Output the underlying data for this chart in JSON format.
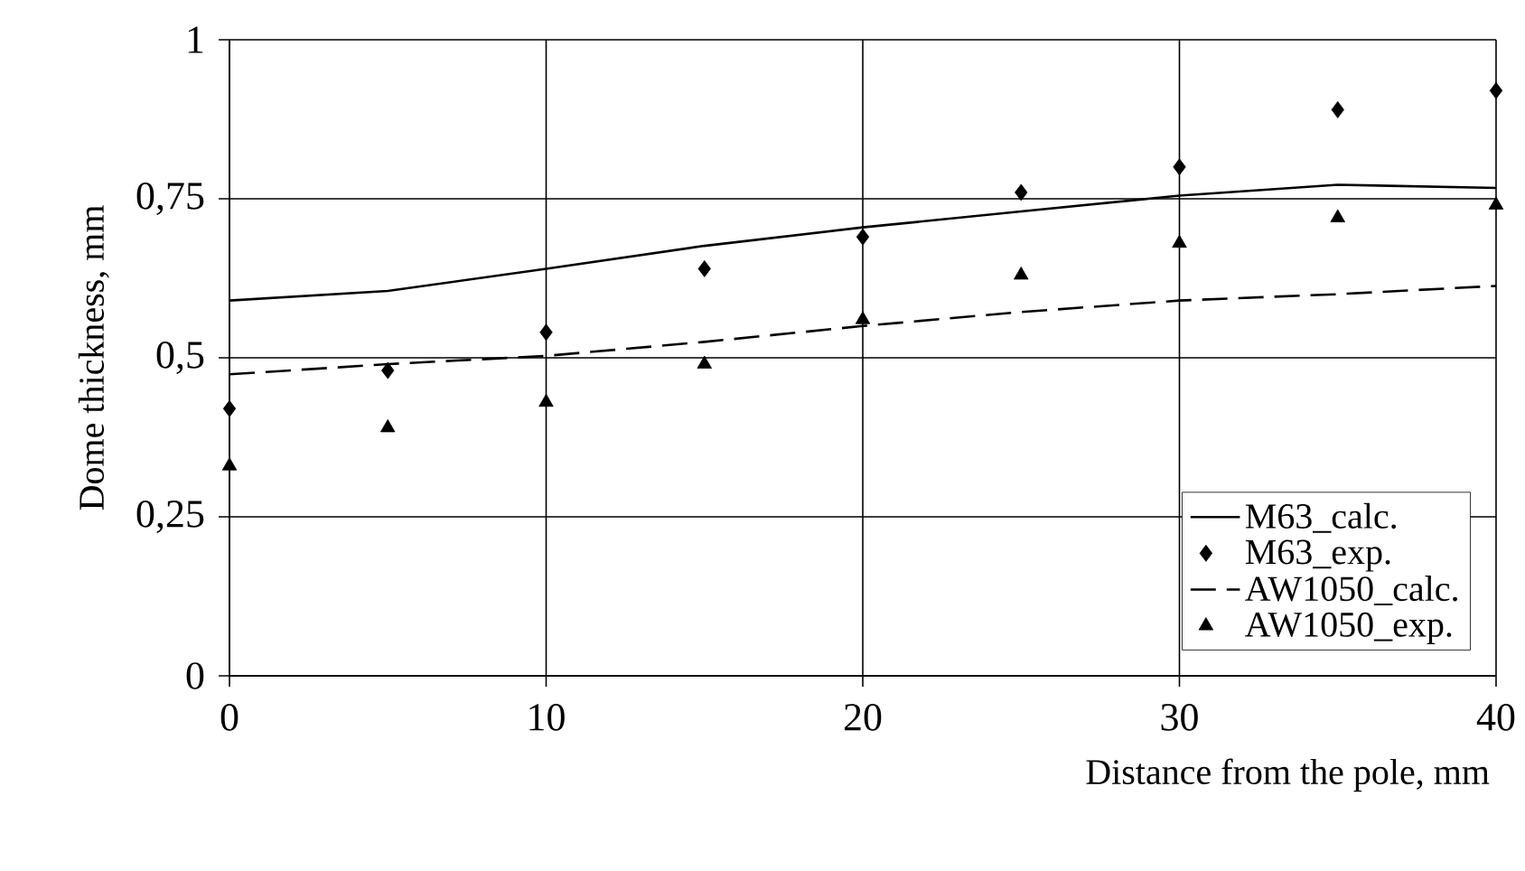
{
  "chart_data": {
    "type": "line",
    "xlabel": "Distance from the pole, mm",
    "ylabel": "Dome thickness, mm",
    "x": [
      0,
      5,
      10,
      15,
      20,
      25,
      30,
      35,
      40
    ],
    "xlim": [
      0,
      40
    ],
    "xticks": [
      0,
      10,
      20,
      30,
      40
    ],
    "ylim": [
      0,
      1
    ],
    "yticks": [
      0,
      {
        "value": 0.25,
        "label": "0,25"
      },
      {
        "value": 0.5,
        "label": "0,5"
      },
      {
        "value": 0.75,
        "label": "0,75"
      },
      1
    ],
    "grid": true,
    "legend": "bottom right",
    "series": [
      {
        "name": "M63_calc.",
        "color": "#000000",
        "line_style": "solid",
        "marker": "none",
        "values": [
          0.59,
          0.605,
          0.64,
          0.676,
          0.705,
          0.73,
          0.755,
          0.772,
          0.767
        ]
      },
      {
        "name": "M63_exp.",
        "type": "scatter",
        "color": "#000000",
        "marker": "diamond",
        "values": [
          0.42,
          0.48,
          0.54,
          0.64,
          0.69,
          0.76,
          0.8,
          0.89,
          0.92
        ]
      },
      {
        "name": "AW1050_calc.",
        "color": "#000000",
        "line_style": "dashed",
        "marker": "none",
        "values": [
          0.474,
          0.49,
          0.503,
          0.525,
          0.55,
          0.572,
          0.59,
          0.6,
          0.613
        ]
      },
      {
        "name": "AW1050_exp.",
        "type": "scatter",
        "color": "#000000",
        "marker": "triangle",
        "values": [
          0.33,
          0.39,
          0.43,
          0.49,
          0.56,
          0.63,
          0.68,
          0.72,
          0.74
        ]
      }
    ]
  }
}
